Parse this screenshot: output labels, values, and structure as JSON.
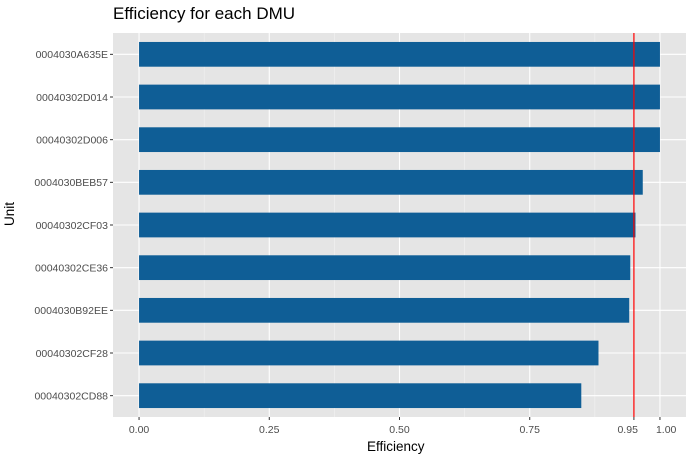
{
  "chart_data": {
    "type": "bar",
    "orientation": "horizontal",
    "title": "Efficiency for each DMU",
    "xlabel": "Efficiency",
    "ylabel": "Unit",
    "categories": [
      "0004030A635E",
      "00040302D014",
      "00040302D006",
      "0004030BEB57",
      "00040302CF03",
      "00040302CE36",
      "0004030B92EE",
      "00040302CF28",
      "00040302CD88"
    ],
    "values": [
      1.0,
      1.0,
      1.0,
      0.967,
      0.953,
      0.943,
      0.941,
      0.882,
      0.849
    ],
    "xlim": [
      -0.05,
      1.05
    ],
    "xticks": [
      0.0,
      0.25,
      0.5,
      0.75,
      0.95,
      1.0
    ],
    "xtick_labels": [
      "0.00",
      "0.25",
      "0.50",
      "0.75",
      "0.95",
      "1.00"
    ],
    "reference_line": {
      "value": 0.95,
      "color": "#ff0000"
    },
    "bar_color": "#0f5e96",
    "panel_background": "#e5e5e5",
    "grid": true
  }
}
